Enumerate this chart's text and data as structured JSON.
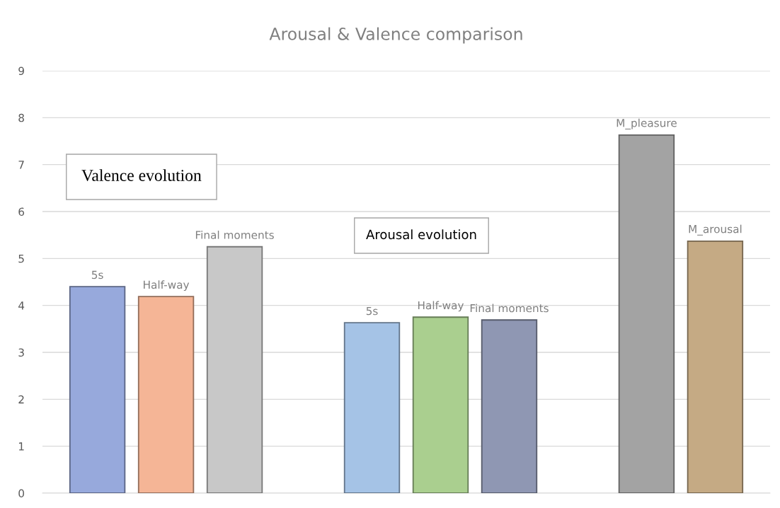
{
  "chart_data": {
    "type": "bar",
    "title": "Arousal & Valence comparison",
    "categories": [
      null,
      null,
      null,
      null,
      null,
      null,
      null,
      null,
      null,
      null
    ],
    "series": [
      {
        "name": "5s",
        "color": "#97a9dc",
        "values": [
          4.4,
          null,
          null,
          null,
          null,
          null,
          null,
          null,
          null,
          null
        ]
      },
      {
        "name": "Half-way",
        "color": "#f5b596",
        "values": [
          null,
          4.19,
          null,
          null,
          null,
          null,
          null,
          null,
          null,
          null
        ]
      },
      {
        "name": "Final moments",
        "color": "#c8c8c8",
        "values": [
          null,
          null,
          5.25,
          null,
          null,
          null,
          null,
          null,
          null,
          null
        ]
      },
      {
        "name": "5s",
        "color": "#a5c3e6",
        "values": [
          null,
          null,
          null,
          null,
          3.63,
          null,
          null,
          null,
          null,
          null
        ]
      },
      {
        "name": "Half-way",
        "color": "#aacf8f",
        "values": [
          null,
          null,
          null,
          null,
          null,
          3.75,
          null,
          null,
          null,
          null
        ]
      },
      {
        "name": "Final moments",
        "color": "#8f97b3",
        "values": [
          null,
          null,
          null,
          null,
          null,
          null,
          3.69,
          null,
          null,
          null
        ]
      },
      {
        "name": "M_pleasure",
        "color": "#a3a3a3",
        "values": [
          null,
          null,
          null,
          null,
          null,
          null,
          null,
          null,
          7.63,
          null
        ]
      },
      {
        "name": "M_arousal",
        "color": "#c5aa84",
        "values": [
          null,
          null,
          null,
          null,
          null,
          null,
          null,
          null,
          null,
          5.37
        ]
      }
    ],
    "annotations": [
      "Valence evolution",
      "Arousal evolution"
    ],
    "ylim": [
      0,
      9
    ],
    "yticks": [
      0,
      1,
      2,
      3,
      4,
      5,
      6,
      7,
      8,
      9
    ],
    "grid": "y",
    "legend": false
  }
}
